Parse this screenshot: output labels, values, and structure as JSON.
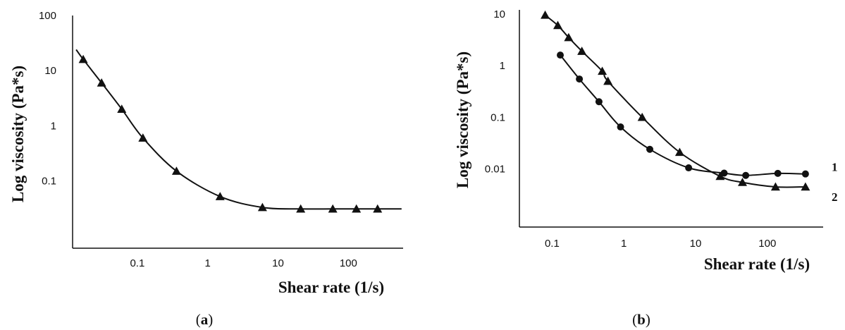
{
  "chart_data": [
    {
      "type": "line",
      "panel_label": "a",
      "xlabel": "Shear rate (1/s)",
      "ylabel": "Log viscosity (Pa*s)",
      "x_scale": "log",
      "y_scale": "log",
      "xlim": [
        0.012,
        600
      ],
      "ylim": [
        0.006,
        100
      ],
      "x_ticks": [
        0.1,
        1,
        10,
        100
      ],
      "x_tick_labels": [
        "0.1",
        "1",
        "10",
        "100"
      ],
      "y_ticks": [
        0.1,
        1,
        10,
        100
      ],
      "y_tick_labels": [
        "0.1",
        "1",
        "10",
        "100"
      ],
      "grid": false,
      "series": [
        {
          "marker": "triangle",
          "x": [
            0.017,
            0.031,
            0.06,
            0.12,
            0.36,
            1.5,
            6,
            21,
            60,
            130,
            260
          ],
          "y": [
            16,
            6,
            2,
            0.6,
            0.15,
            0.052,
            0.033,
            0.031,
            0.031,
            0.031,
            0.031
          ]
        }
      ]
    },
    {
      "type": "line",
      "panel_label": "b",
      "xlabel": "Shear rate (1/s)",
      "ylabel": "Log viscosity (Pa*s)",
      "x_scale": "log",
      "y_scale": "log",
      "xlim": [
        0.035,
        600
      ],
      "ylim": [
        0.00075,
        12
      ],
      "x_ticks": [
        0.1,
        1,
        10,
        100
      ],
      "x_tick_labels": [
        "0.1",
        "1",
        "10",
        "100"
      ],
      "y_ticks": [
        0.01,
        0.1,
        1,
        10
      ],
      "y_tick_labels": [
        "0.01",
        "0.1",
        "1",
        "10"
      ],
      "grid": false,
      "series": [
        {
          "name": "1",
          "marker": "circle",
          "x": [
            0.13,
            0.24,
            0.45,
            0.9,
            2.3,
            8,
            25,
            50,
            140,
            340
          ],
          "y": [
            1.6,
            0.55,
            0.2,
            0.065,
            0.024,
            0.0105,
            0.0083,
            0.0075,
            0.0082,
            0.008
          ]
        },
        {
          "name": "2",
          "marker": "triangle",
          "x": [
            0.08,
            0.12,
            0.17,
            0.26,
            0.5,
            0.6,
            1.8,
            6,
            22,
            45,
            130,
            340
          ],
          "y": [
            9.5,
            6,
            3.5,
            1.9,
            0.78,
            0.5,
            0.1,
            0.021,
            0.0072,
            0.0055,
            0.0045,
            0.0045
          ]
        }
      ]
    }
  ]
}
